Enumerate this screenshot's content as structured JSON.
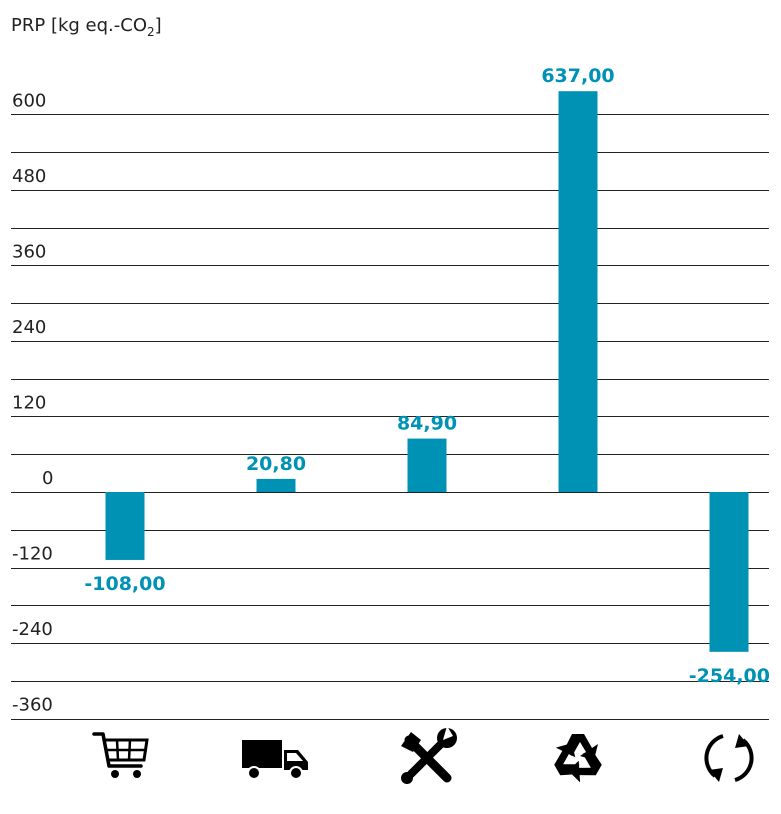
{
  "chart_data": {
    "type": "bar",
    "ylabel": "PRP [kg eq.-CO",
    "ylabel_sub": "2",
    "ylabel_suffix": "]",
    "ylim": [
      -360,
      600
    ],
    "y_ticks": [
      {
        "value": 600,
        "label": "600"
      },
      {
        "value": 480,
        "label": "480"
      },
      {
        "value": 360,
        "label": "360"
      },
      {
        "value": 240,
        "label": "240"
      },
      {
        "value": 120,
        "label": "120"
      },
      {
        "value": 0,
        "label": "0"
      },
      {
        "value": -120,
        "label": "-120"
      },
      {
        "value": -240,
        "label": "-240"
      },
      {
        "value": -360,
        "label": "-360"
      }
    ],
    "grid": true,
    "bar_color": "#0092b5",
    "categories": [
      {
        "icon": "shopping-cart-icon",
        "value": -108,
        "label": "-108,00"
      },
      {
        "icon": "truck-icon",
        "value": 20.8,
        "label": "20,80"
      },
      {
        "icon": "tools-icon",
        "value": 84.9,
        "label": "84,90"
      },
      {
        "icon": "recycle-icon",
        "value": 637,
        "label": "637,00"
      },
      {
        "icon": "cycle-icon",
        "value": -254,
        "label": "-254,00"
      }
    ]
  }
}
